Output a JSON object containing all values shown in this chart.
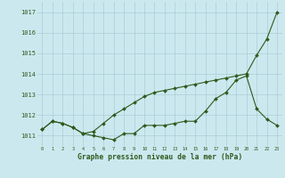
{
  "line1": [
    1011.3,
    1011.7,
    1011.6,
    1011.4,
    1011.1,
    1011.2,
    1011.6,
    1012.0,
    1012.3,
    1012.6,
    1012.9,
    1013.1,
    1013.2,
    1013.3,
    1013.4,
    1013.5,
    1013.6,
    1013.7,
    1013.8,
    1013.9,
    1014.0,
    1014.9,
    1015.7,
    1017.0
  ],
  "line2": [
    1011.3,
    1011.7,
    1011.6,
    1011.4,
    1011.1,
    1011.0,
    1010.9,
    1010.8,
    1011.1,
    1011.1,
    1011.5,
    1011.5,
    1011.5,
    1011.6,
    1011.7,
    1011.7,
    1012.2,
    1012.8,
    1013.1,
    1013.7,
    1013.9,
    1012.3,
    1011.8,
    1011.5
  ],
  "x": [
    0,
    1,
    2,
    3,
    4,
    5,
    6,
    7,
    8,
    9,
    10,
    11,
    12,
    13,
    14,
    15,
    16,
    17,
    18,
    19,
    20,
    21,
    22,
    23
  ],
  "line_color": "#2d5a1b",
  "marker": "D",
  "markersize": 2.0,
  "linewidth": 0.8,
  "ylim": [
    1010.5,
    1017.5
  ],
  "yticks": [
    1011,
    1012,
    1013,
    1014,
    1015,
    1016,
    1017
  ],
  "xtick_labels": [
    "0",
    "1",
    "2",
    "3",
    "4",
    "5",
    "6",
    "7",
    "8",
    "9",
    "10",
    "11",
    "12",
    "13",
    "14",
    "15",
    "16",
    "17",
    "18",
    "19",
    "20",
    "21",
    "22",
    "23"
  ],
  "xlabel": "Graphe pression niveau de la mer (hPa)",
  "bg_color": "#cce8ef",
  "grid_color": "#aacdd6",
  "text_color": "#2d5a1b"
}
